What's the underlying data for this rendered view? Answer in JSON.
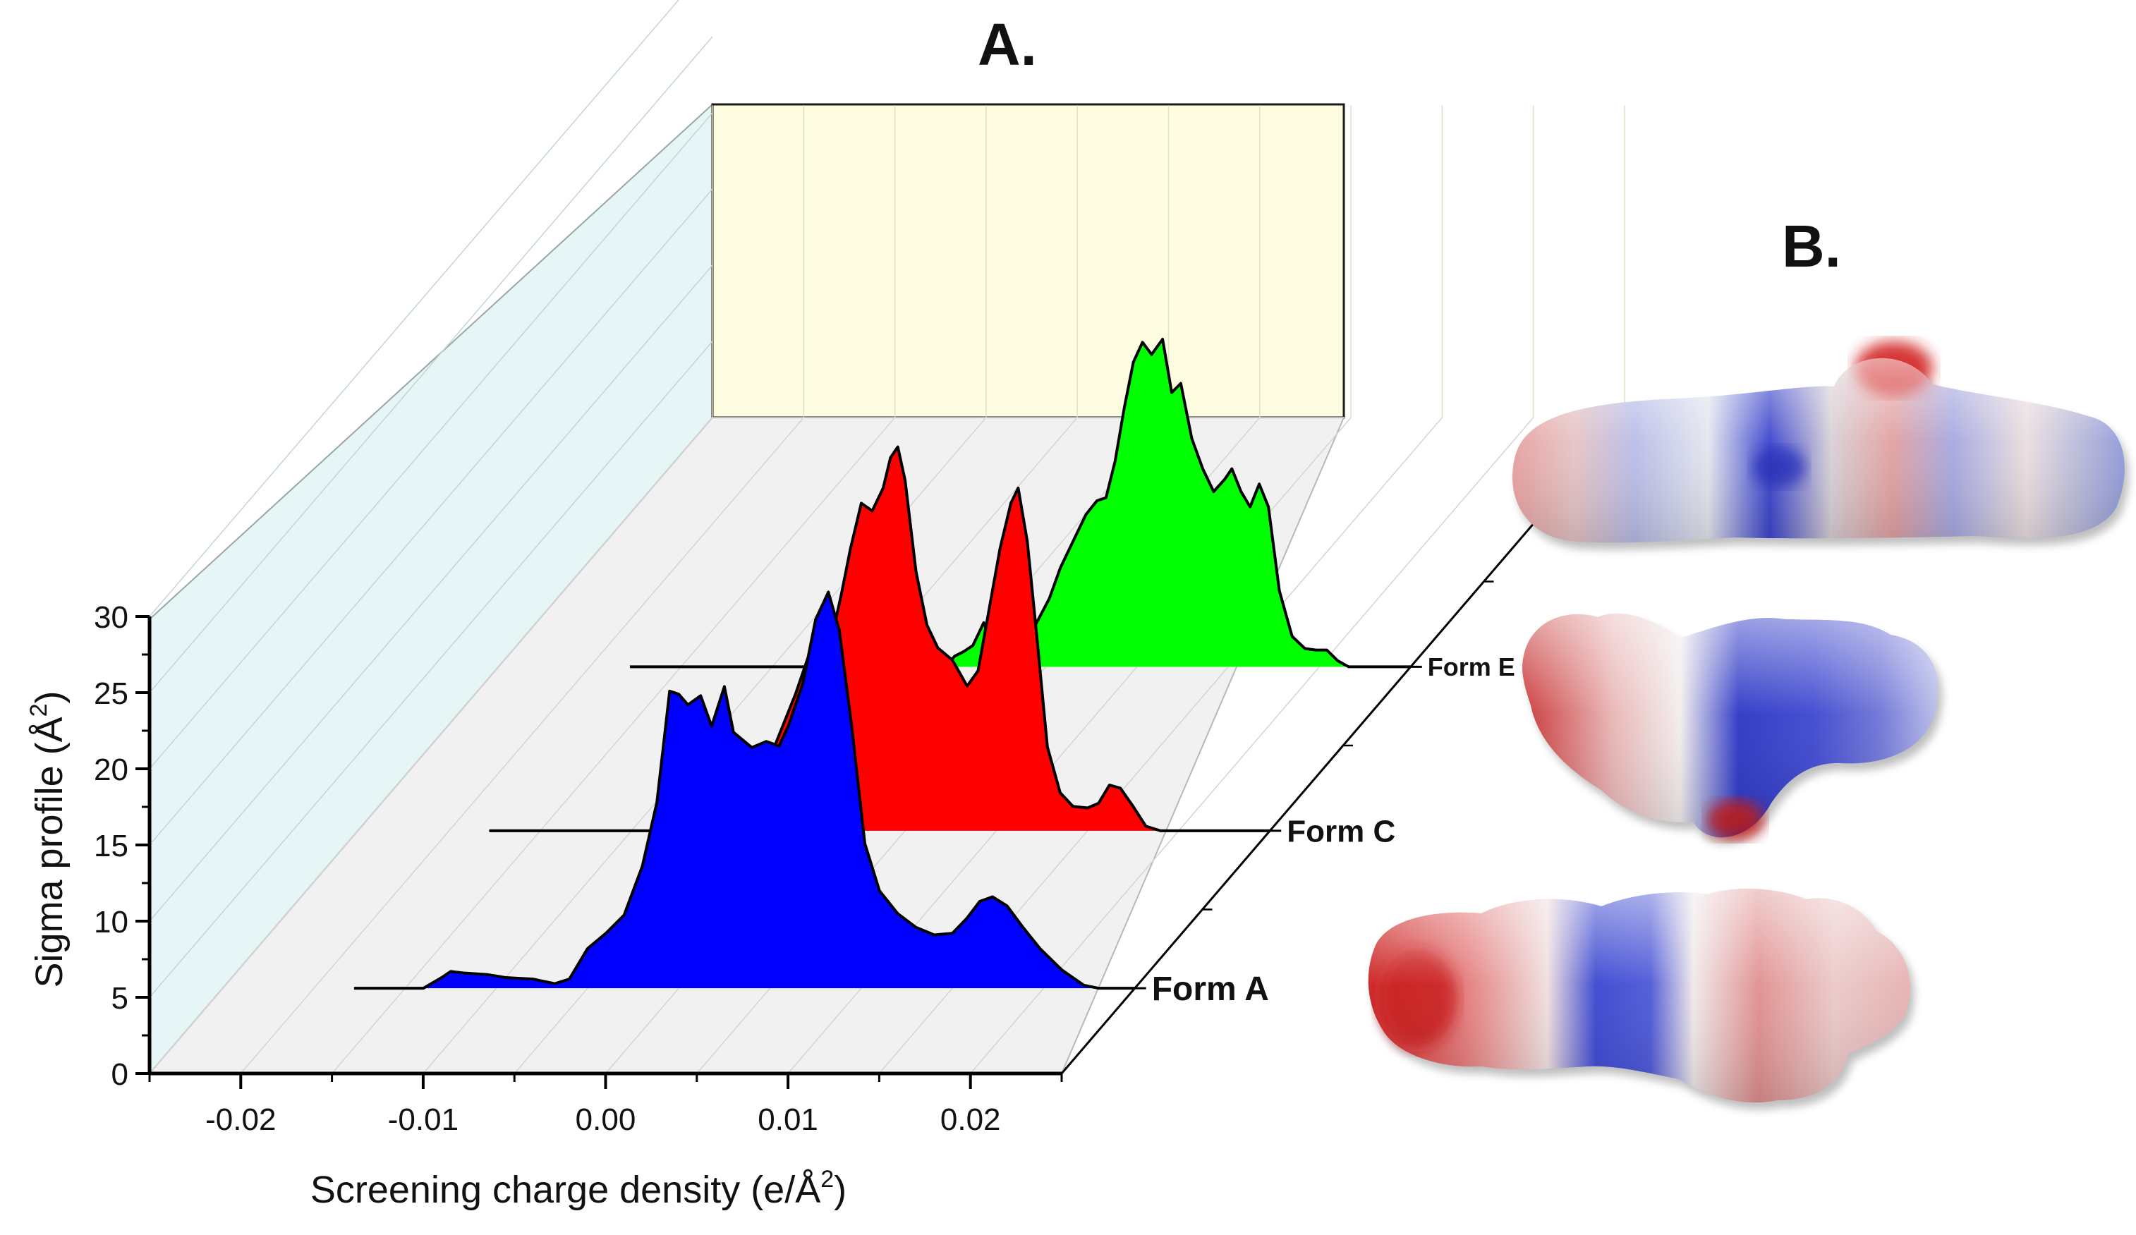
{
  "panels": {
    "a_label": "A.",
    "b_label": "B."
  },
  "chart_data": {
    "type": "area",
    "title": "A.",
    "xlabel_text": "Screening charge density (e/Å",
    "xlabel_sup": "2",
    "xlabel_close": ")",
    "ylabel_text": "Sigma profile (Å",
    "ylabel_sup": "2",
    "ylabel_close": ")",
    "xlim": [
      -0.025,
      0.025
    ],
    "ylim": [
      0,
      30
    ],
    "x_ticks": [
      -0.02,
      -0.01,
      0.0,
      0.01,
      0.02
    ],
    "x_tick_labels": [
      "-0.02",
      "-0.01",
      "0.00",
      "0.01",
      "0.02"
    ],
    "y_ticks": [
      0,
      5,
      10,
      15,
      20,
      25,
      30
    ],
    "y_tick_labels": [
      "0",
      "5",
      "10",
      "15",
      "20",
      "25",
      "30"
    ],
    "series": [
      {
        "name": "Form A",
        "color": "#0000ff",
        "points": [
          [
            -0.0178,
            0
          ],
          [
            -0.014,
            0
          ],
          [
            -0.013,
            0.7
          ],
          [
            -0.0125,
            1.1
          ],
          [
            -0.0118,
            1.0
          ],
          [
            -0.0105,
            0.9
          ],
          [
            -0.0095,
            0.7
          ],
          [
            -0.008,
            0.6
          ],
          [
            -0.0068,
            0.3
          ],
          [
            -0.006,
            0.6
          ],
          [
            -0.005,
            2.6
          ],
          [
            -0.004,
            3.6
          ],
          [
            -0.003,
            4.8
          ],
          [
            -0.002,
            8.0
          ],
          [
            -0.0012,
            12.2
          ],
          [
            -0.0005,
            19.5
          ],
          [
            0.0,
            19.3
          ],
          [
            0.0005,
            18.6
          ],
          [
            0.0012,
            19.2
          ],
          [
            0.0018,
            17.2
          ],
          [
            0.0025,
            19.8
          ],
          [
            0.003,
            16.8
          ],
          [
            0.004,
            15.8
          ],
          [
            0.0048,
            16.2
          ],
          [
            0.0055,
            15.9
          ],
          [
            0.006,
            17.2
          ],
          [
            0.0068,
            20.0
          ],
          [
            0.0075,
            24.2
          ],
          [
            0.0082,
            26.0
          ],
          [
            0.0088,
            23.5
          ],
          [
            0.0095,
            17.0
          ],
          [
            0.0102,
            9.5
          ],
          [
            0.011,
            6.4
          ],
          [
            0.012,
            4.9
          ],
          [
            0.013,
            4.0
          ],
          [
            0.014,
            3.5
          ],
          [
            0.015,
            3.6
          ],
          [
            0.0158,
            4.6
          ],
          [
            0.0165,
            5.7
          ],
          [
            0.0172,
            6.0
          ],
          [
            0.018,
            5.4
          ],
          [
            0.0188,
            4.1
          ],
          [
            0.0198,
            2.6
          ],
          [
            0.021,
            1.2
          ],
          [
            0.0222,
            0.2
          ],
          [
            0.023,
            0
          ],
          [
            0.025,
            0
          ]
        ]
      },
      {
        "name": "Form C",
        "color": "#ff0000",
        "points": [
          [
            -0.0178,
            0
          ],
          [
            -0.008,
            0
          ],
          [
            -0.007,
            0.3
          ],
          [
            -0.006,
            0.7
          ],
          [
            -0.0052,
            0.4
          ],
          [
            -0.0042,
            1.3
          ],
          [
            -0.003,
            3.0
          ],
          [
            -0.002,
            6.0
          ],
          [
            -0.001,
            9.0
          ],
          [
            -0.0002,
            11.8
          ],
          [
            0.0004,
            11.3
          ],
          [
            0.001,
            12.8
          ],
          [
            0.0015,
            15.5
          ],
          [
            0.002,
            18.5
          ],
          [
            0.0026,
            21.5
          ],
          [
            0.0032,
            21.0
          ],
          [
            0.0038,
            22.5
          ],
          [
            0.0042,
            24.5
          ],
          [
            0.0046,
            25.2
          ],
          [
            0.005,
            23.0
          ],
          [
            0.0056,
            17.0
          ],
          [
            0.0062,
            13.5
          ],
          [
            0.0068,
            12.0
          ],
          [
            0.0076,
            11.2
          ],
          [
            0.0084,
            9.5
          ],
          [
            0.009,
            10.5
          ],
          [
            0.0096,
            14.5
          ],
          [
            0.0102,
            18.5
          ],
          [
            0.0108,
            21.5
          ],
          [
            0.0112,
            22.5
          ],
          [
            0.0117,
            19.0
          ],
          [
            0.0122,
            13.0
          ],
          [
            0.0128,
            5.5
          ],
          [
            0.0135,
            2.5
          ],
          [
            0.0142,
            1.6
          ],
          [
            0.015,
            1.5
          ],
          [
            0.0156,
            1.8
          ],
          [
            0.0162,
            3.0
          ],
          [
            0.0168,
            2.8
          ],
          [
            0.0175,
            1.6
          ],
          [
            0.0182,
            0.3
          ],
          [
            0.019,
            0
          ],
          [
            0.025,
            0
          ]
        ]
      },
      {
        "name": "Form E",
        "color": "#00ff00",
        "points": [
          [
            -0.0178,
            0
          ],
          [
            -0.0005,
            0
          ],
          [
            0.0,
            0.7
          ],
          [
            0.0005,
            1.0
          ],
          [
            0.001,
            1.4
          ],
          [
            0.0016,
            2.9
          ],
          [
            0.002,
            1.7
          ],
          [
            0.0026,
            0.9
          ],
          [
            0.0032,
            1.1
          ],
          [
            0.0038,
            1.6
          ],
          [
            0.0045,
            2.9
          ],
          [
            0.0052,
            4.5
          ],
          [
            0.0058,
            6.5
          ],
          [
            0.0066,
            8.5
          ],
          [
            0.0072,
            10.0
          ],
          [
            0.0078,
            10.9
          ],
          [
            0.0083,
            11.1
          ],
          [
            0.0088,
            13.5
          ],
          [
            0.0093,
            17.0
          ],
          [
            0.0098,
            20.0
          ],
          [
            0.0103,
            21.3
          ],
          [
            0.0108,
            20.5
          ],
          [
            0.0114,
            21.5
          ],
          [
            0.0119,
            18.0
          ],
          [
            0.0124,
            18.6
          ],
          [
            0.013,
            15.0
          ],
          [
            0.0136,
            13.0
          ],
          [
            0.0142,
            11.5
          ],
          [
            0.0148,
            12.3
          ],
          [
            0.0152,
            13.0
          ],
          [
            0.0157,
            11.5
          ],
          [
            0.0162,
            10.5
          ],
          [
            0.0167,
            12.0
          ],
          [
            0.0172,
            10.5
          ],
          [
            0.0178,
            5.0
          ],
          [
            0.0185,
            2.0
          ],
          [
            0.0192,
            1.2
          ],
          [
            0.0198,
            1.1
          ],
          [
            0.0204,
            1.1
          ],
          [
            0.021,
            0.4
          ],
          [
            0.0216,
            0
          ],
          [
            0.025,
            0
          ]
        ]
      }
    ],
    "legend": [
      "Form A",
      "Form C",
      "Form E"
    ],
    "grid": true
  }
}
